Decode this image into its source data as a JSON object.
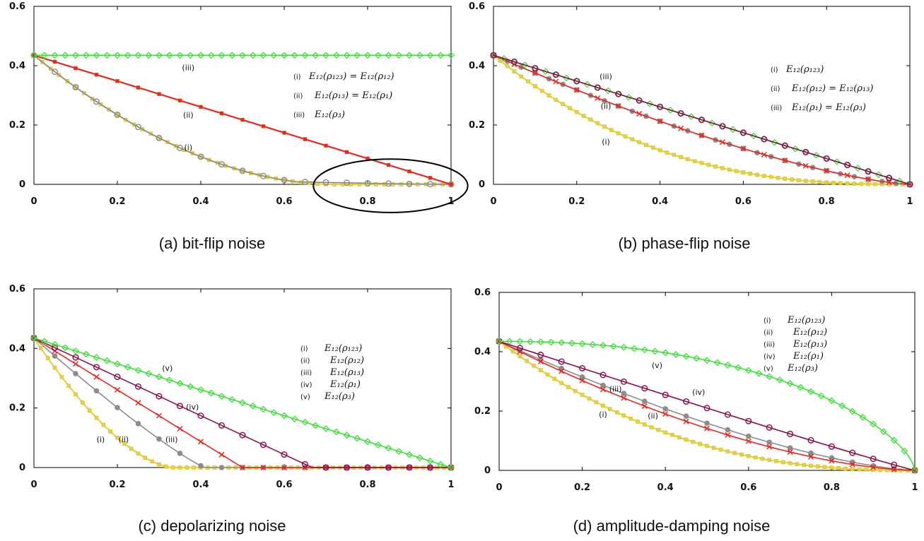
{
  "colors": {
    "yellow": "#e8d23a",
    "gray": "#8c8c8c",
    "red": "#e8261e",
    "purple": "#8a0a4a",
    "green": "#3fe03a",
    "ellipse": "#000000"
  },
  "chart_data": [
    {
      "type": "line",
      "caption": "(a) bit-flip noise",
      "xlim": [
        0,
        1
      ],
      "ylim": [
        0,
        0.6
      ],
      "xticks": [
        "0",
        "0.2",
        "0.4",
        "0.6",
        "0.8",
        "1"
      ],
      "yticks": [
        "0",
        "0.2",
        "0.4",
        "0.6"
      ],
      "legend": [
        {
          "roman": "(i)",
          "text": "E₁₂(ρ₁₂₃) = E₁₂(ρ₁₂)"
        },
        {
          "roman": "(ii)",
          "text": "E₁₂(ρ₁₃) = E₁₂(ρ₁)"
        },
        {
          "roman": "(iii)",
          "text": "E₁₂(ρ₃)"
        }
      ],
      "series": [
        {
          "label": "(i)",
          "color": "yellow",
          "marker": "square",
          "model": "bf_i",
          "points": 51
        },
        {
          "label": "(i)",
          "color": "gray",
          "marker": "circle-open",
          "model": "bf_i_tail",
          "points": 21
        },
        {
          "label": "(ii)",
          "color": "red",
          "marker": "square",
          "model": "linear",
          "points": 21
        },
        {
          "label": "(iii)",
          "color": "green",
          "marker": "diamond",
          "model": "const",
          "points": 41
        }
      ],
      "curve_labels": [
        {
          "text": "(iii)",
          "x": 0.37,
          "y": 0.385
        },
        {
          "text": "(ii)",
          "x": 0.37,
          "y": 0.225
        },
        {
          "text": "(i)",
          "x": 0.37,
          "y": 0.115
        }
      ],
      "ellipse": {
        "cx": 0.855,
        "cy": -0.005,
        "rx": 0.185,
        "ry": 0.09
      }
    },
    {
      "type": "line",
      "caption": "(b) phase-flip noise",
      "xlim": [
        0,
        1
      ],
      "ylim": [
        0,
        0.6
      ],
      "xticks": [
        "0",
        "0.2",
        "0.4",
        "0.6",
        "0.8",
        "1"
      ],
      "yticks": [
        "0",
        "0.2",
        "0.4",
        "0.6"
      ],
      "legend": [
        {
          "roman": "(i)",
          "text": "E₁₂(ρ₁₂₃)"
        },
        {
          "roman": "(ii)",
          "text": "E₁₂(ρ₁₂) = E₁₂(ρ₁₃)"
        },
        {
          "roman": "(iii)",
          "text": "E₁₂(ρ₁) = E₁₂(ρ₃)"
        }
      ],
      "series": [
        {
          "label": "(i)",
          "color": "yellow",
          "marker": "square",
          "model": "pf_i",
          "points": 61
        },
        {
          "label": "(ii)",
          "color": "gray",
          "marker": "circle",
          "model": "pf_ii",
          "points": 31
        },
        {
          "label": "(ii)",
          "color": "red",
          "marker": "cross",
          "model": "pf_ii",
          "points": 21
        },
        {
          "label": "(iii)",
          "color": "green",
          "marker": "diamond",
          "model": "linear",
          "points": 41
        },
        {
          "label": "(iii)",
          "color": "purple",
          "marker": "circle-open",
          "model": "linear",
          "points": 21
        }
      ],
      "curve_labels": [
        {
          "text": "(iii)",
          "x": 0.27,
          "y": 0.355
        },
        {
          "text": "(ii)",
          "x": 0.27,
          "y": 0.255
        },
        {
          "text": "(i)",
          "x": 0.27,
          "y": 0.135
        }
      ]
    },
    {
      "type": "line",
      "caption": "(c) depolarizing noise",
      "xlim": [
        0,
        1
      ],
      "ylim": [
        0,
        0.6
      ],
      "xticks": [
        "0",
        "0.2",
        "0.4",
        "0.6",
        "0.8",
        "1"
      ],
      "yticks": [
        "0",
        "0.2",
        "0.4",
        "0.6"
      ],
      "legend": [
        {
          "roman": "(i)",
          "text": "E₁₂(ρ₁₂₃)"
        },
        {
          "roman": "(ii)",
          "text": "E₁₂(ρ₁₂)"
        },
        {
          "roman": "(iii)",
          "text": "E₁₂(ρ₁₃)"
        },
        {
          "roman": "(iv)",
          "text": "E₁₂(ρ₁)"
        },
        {
          "roman": "(v)",
          "text": "E₁₂(ρ₃)"
        }
      ],
      "series": [
        {
          "label": "(i)",
          "color": "yellow",
          "marker": "square",
          "model": "dp_i",
          "points": 61
        },
        {
          "label": "(ii)",
          "color": "gray",
          "marker": "circle",
          "model": "dp_ii",
          "points": 21
        },
        {
          "label": "(iii)",
          "color": "red",
          "marker": "cross",
          "model": "dp_iii",
          "points": 21
        },
        {
          "label": "(iv)",
          "color": "purple",
          "marker": "circle-open",
          "model": "dp_iv",
          "points": 21
        },
        {
          "label": "(v)",
          "color": "green",
          "marker": "diamond",
          "model": "linear",
          "points": 41
        }
      ],
      "curve_labels": [
        {
          "text": "(v)",
          "x": 0.32,
          "y": 0.325
        },
        {
          "text": "(iv)",
          "x": 0.38,
          "y": 0.195
        },
        {
          "text": "(iii)",
          "x": 0.33,
          "y": 0.085
        },
        {
          "text": "(ii)",
          "x": 0.215,
          "y": 0.085
        },
        {
          "text": "(i)",
          "x": 0.16,
          "y": 0.085
        }
      ]
    },
    {
      "type": "line",
      "caption": "(d) amplitude-damping noise",
      "xlim": [
        0,
        1
      ],
      "ylim": [
        0,
        0.6
      ],
      "xticks": [
        "0",
        "0.2",
        "0.4",
        "0.6",
        "0.8",
        "1"
      ],
      "yticks": [
        "0",
        "0.2",
        "0.4",
        "0.6"
      ],
      "legend": [
        {
          "roman": "(i)",
          "text": "E₁₂(ρ₁₂₃)"
        },
        {
          "roman": "(ii)",
          "text": "E₁₂(ρ₁₂)"
        },
        {
          "roman": "(iii)",
          "text": "E₁₂(ρ₁₃)"
        },
        {
          "roman": "(iv)",
          "text": "E₁₂(ρ₁)"
        },
        {
          "roman": "(v)",
          "text": "E₁₂(ρ₃)"
        }
      ],
      "series": [
        {
          "label": "(i)",
          "color": "yellow",
          "marker": "square",
          "model": "ad_i",
          "points": 61
        },
        {
          "label": "(ii)",
          "color": "gray",
          "marker": "circle",
          "model": "ad_ii",
          "points": 21
        },
        {
          "label": "(iii)",
          "color": "red",
          "marker": "cross",
          "model": "ad_iii",
          "points": 21
        },
        {
          "label": "(iv)",
          "color": "purple",
          "marker": "circle-open",
          "model": "ad_iv",
          "points": 21
        },
        {
          "label": "(v)",
          "color": "green",
          "marker": "diamond",
          "model": "ad_v",
          "points": 41
        }
      ],
      "curve_labels": [
        {
          "text": "(v)",
          "x": 0.38,
          "y": 0.345
        },
        {
          "text": "(iv)",
          "x": 0.48,
          "y": 0.255
        },
        {
          "text": "(iii)",
          "x": 0.28,
          "y": 0.265
        },
        {
          "text": "(ii)",
          "x": 0.37,
          "y": 0.175
        },
        {
          "text": "(i)",
          "x": 0.25,
          "y": 0.18
        }
      ]
    }
  ]
}
